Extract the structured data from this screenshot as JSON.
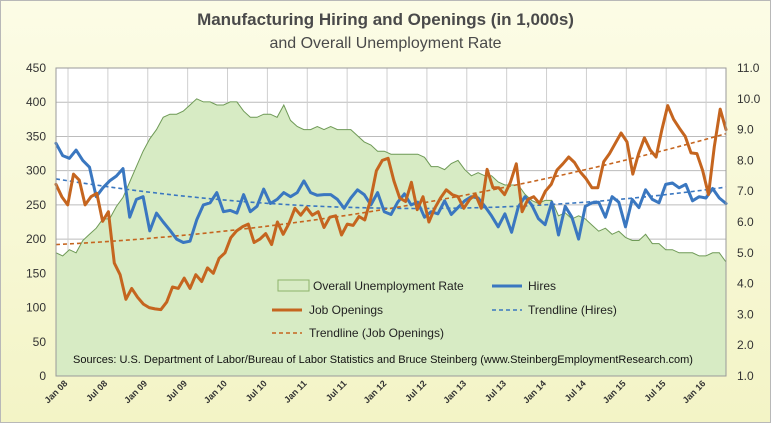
{
  "chart_data": {
    "type": "line",
    "title": "Manufacturing Hiring and Openings (in 1,000s)",
    "subtitle": "and Overall Unemployment Rate",
    "source": "Sources: U.S. Department of Labor/Bureau of Labor Statistics and Bruce Steinberg (www.SteinbergEmploymentResearch.com)",
    "x_labels": [
      "Jan 08",
      "Jul 08",
      "Jan 09",
      "Jul 09",
      "Jan 10",
      "Jul 10",
      "Jan 11",
      "Jul 11",
      "Jan 12",
      "Jul 12",
      "Jan 13",
      "Jul 13",
      "Jan 14",
      "Jul 14",
      "Jan 15",
      "Jul 15",
      "Jan 16"
    ],
    "left_axis": {
      "min": 0,
      "max": 450,
      "ticks": [
        "0",
        "50",
        "100",
        "150",
        "200",
        "250",
        "300",
        "350",
        "400",
        "450"
      ]
    },
    "right_axis": {
      "min": 1.0,
      "max": 11.0,
      "ticks": [
        "1.0",
        "2.0",
        "3.0",
        "4.0",
        "5.0",
        "6.0",
        "7.0",
        "8.0",
        "9.0",
        "10.0",
        "11.0"
      ]
    },
    "grid": true,
    "legend_position": "inside-bottom",
    "series": [
      {
        "name": "Overall Unemployment Rate",
        "kind": "area",
        "axis": "right",
        "color": "#d7ebc4",
        "values": [
          5.0,
          4.9,
          5.1,
          5.0,
          5.4,
          5.6,
          5.8,
          6.1,
          6.1,
          6.5,
          6.8,
          7.3,
          7.8,
          8.3,
          8.7,
          9.0,
          9.4,
          9.5,
          9.5,
          9.6,
          9.8,
          10.0,
          9.9,
          9.9,
          9.8,
          9.8,
          9.9,
          9.9,
          9.6,
          9.4,
          9.4,
          9.5,
          9.5,
          9.4,
          9.8,
          9.3,
          9.1,
          9.0,
          9.0,
          9.1,
          9.0,
          9.1,
          9.0,
          9.0,
          9.0,
          8.8,
          8.6,
          8.5,
          8.3,
          8.3,
          8.2,
          8.2,
          8.2,
          8.2,
          8.2,
          8.1,
          7.8,
          7.8,
          7.7,
          7.9,
          8.0,
          7.7,
          7.5,
          7.6,
          7.5,
          7.5,
          7.3,
          7.2,
          7.2,
          7.2,
          6.9,
          6.7,
          6.6,
          6.7,
          6.7,
          6.2,
          6.3,
          6.1,
          6.2,
          6.1,
          5.9,
          5.7,
          5.8,
          5.6,
          5.7,
          5.5,
          5.4,
          5.4,
          5.6,
          5.3,
          5.3,
          5.1,
          5.1,
          5.0,
          5.0,
          5.0,
          4.9,
          4.9,
          5.0,
          5.0,
          4.7
        ]
      },
      {
        "name": "Hires",
        "kind": "line",
        "axis": "left",
        "color": "#3a77c0",
        "values": [
          340,
          322,
          318,
          330,
          315,
          305,
          262,
          275,
          285,
          292,
          303,
          232,
          258,
          262,
          212,
          238,
          225,
          213,
          200,
          195,
          197,
          228,
          250,
          253,
          268,
          240,
          242,
          238,
          265,
          240,
          248,
          273,
          252,
          258,
          268,
          262,
          268,
          285,
          268,
          264,
          265,
          265,
          258,
          245,
          260,
          272,
          265,
          250,
          268,
          240,
          236,
          254,
          266,
          250,
          254,
          232,
          240,
          237,
          256,
          236,
          246,
          256,
          262,
          260,
          248,
          234,
          218,
          237,
          210,
          247,
          262,
          250,
          230,
          221,
          254,
          206,
          248,
          232,
          200,
          248,
          253,
          254,
          232,
          262,
          254,
          218,
          258,
          246,
          272,
          258,
          253,
          280,
          282,
          275,
          280,
          256,
          262,
          260,
          274,
          260,
          252
        ]
      },
      {
        "name": "Job Openings",
        "kind": "line",
        "axis": "left",
        "color": "#c5651f",
        "values": [
          280,
          262,
          250,
          295,
          286,
          250,
          262,
          267,
          226,
          240,
          165,
          148,
          112,
          128,
          115,
          105,
          100,
          98,
          97,
          108,
          130,
          128,
          143,
          128,
          148,
          138,
          158,
          150,
          172,
          180,
          202,
          212,
          218,
          222,
          195,
          200,
          208,
          192,
          225,
          207,
          223,
          245,
          235,
          246,
          235,
          240,
          217,
          232,
          234,
          206,
          222,
          220,
          233,
          228,
          258,
          300,
          315,
          318,
          285,
          260,
          255,
          283,
          243,
          262,
          225,
          245,
          260,
          272,
          265,
          262,
          245,
          258,
          265,
          245,
          302,
          275,
          275,
          265,
          283,
          310,
          240,
          258,
          262,
          252,
          270,
          280,
          301,
          310,
          320,
          312,
          298,
          288,
          275,
          275,
          313,
          325,
          340,
          355,
          342,
          295,
          325,
          348,
          330,
          320,
          360,
          395,
          375,
          362,
          350,
          326,
          325,
          300,
          265,
          335,
          390,
          360
        ]
      },
      {
        "name": "Trendline (Hires)",
        "kind": "trend",
        "axis": "left",
        "color": "#3a77c0",
        "values": [
          288,
          245,
          276
        ]
      },
      {
        "name": "Trendline (Job Openings)",
        "kind": "trend",
        "axis": "left",
        "color": "#c5651f",
        "values": [
          192,
          245,
          354
        ]
      }
    ]
  }
}
